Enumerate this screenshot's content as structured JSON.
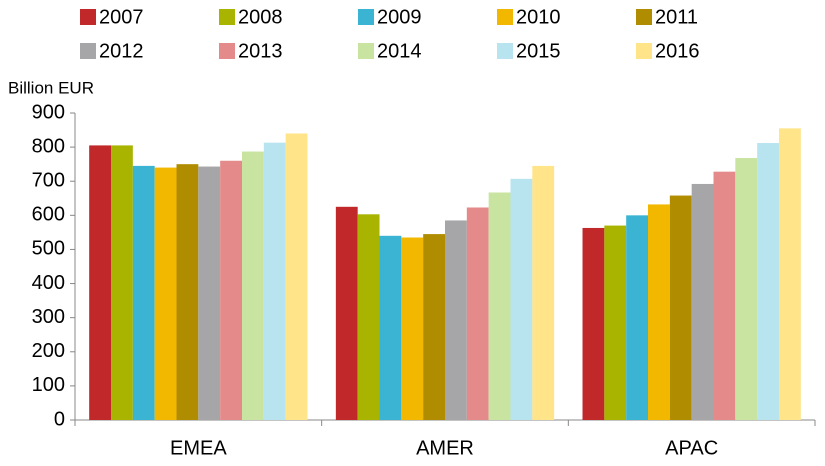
{
  "chart_data": {
    "type": "bar",
    "y_axis_label": "Billion EUR",
    "categories": [
      "EMEA",
      "AMER",
      "APAC"
    ],
    "series": [
      {
        "name": "2007",
        "color": "#c0282a",
        "values": [
          805,
          625,
          563
        ]
      },
      {
        "name": "2008",
        "color": "#a8b400",
        "values": [
          805,
          603,
          570
        ]
      },
      {
        "name": "2009",
        "color": "#3bb4d4",
        "values": [
          745,
          540,
          600
        ]
      },
      {
        "name": "2010",
        "color": "#f2b800",
        "values": [
          740,
          535,
          632
        ]
      },
      {
        "name": "2011",
        "color": "#b08c00",
        "values": [
          750,
          545,
          658
        ]
      },
      {
        "name": "2012",
        "color": "#a6a6a8",
        "values": [
          743,
          585,
          692
        ]
      },
      {
        "name": "2013",
        "color": "#e58a8a",
        "values": [
          760,
          623,
          728
        ]
      },
      {
        "name": "2014",
        "color": "#c9e4a0",
        "values": [
          787,
          667,
          768
        ]
      },
      {
        "name": "2015",
        "color": "#b8e4f0",
        "values": [
          813,
          707,
          812
        ]
      },
      {
        "name": "2016",
        "color": "#ffe48a",
        "values": [
          840,
          745,
          855
        ]
      }
    ],
    "ylim": [
      0,
      900
    ],
    "yticks": [
      0,
      100,
      200,
      300,
      400,
      500,
      600,
      700,
      800,
      900
    ],
    "grid": false,
    "legend": "top"
  }
}
